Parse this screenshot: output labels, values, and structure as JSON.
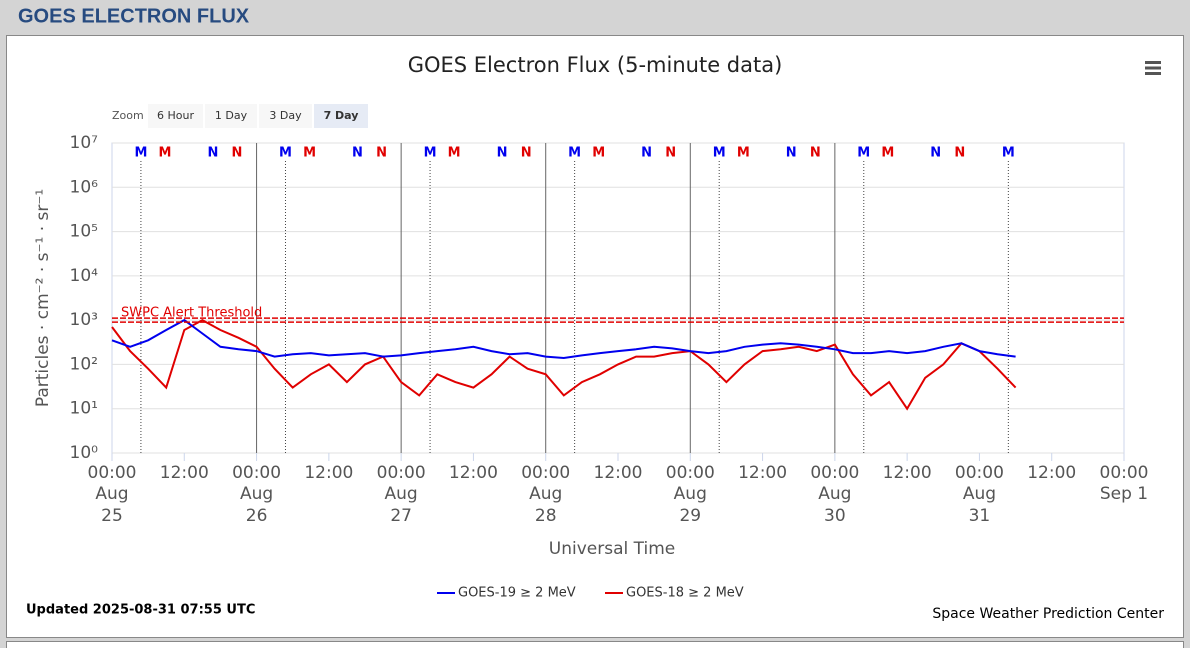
{
  "header": {
    "title": "GOES ELECTRON FLUX"
  },
  "zoom": {
    "label": "Zoom",
    "buttons": [
      "6 Hour",
      "1 Day",
      "3 Day",
      "7 Day"
    ],
    "selected": 3
  },
  "chart_data": {
    "type": "line",
    "title": "GOES Electron Flux (5-minute data)",
    "xlabel": "Universal Time",
    "ylabel": "Particles · cm⁻² · s⁻¹ · sr⁻¹",
    "log_y": true,
    "grid": true,
    "ylim": [
      1,
      10000000
    ],
    "yticks": [
      {
        "value": 1,
        "label": "10⁰"
      },
      {
        "value": 10,
        "label": "10¹"
      },
      {
        "value": 100,
        "label": "10²"
      },
      {
        "value": 1000,
        "label": "10³"
      },
      {
        "value": 10000,
        "label": "10⁴"
      },
      {
        "value": 100000,
        "label": "10⁵"
      },
      {
        "value": 1000000,
        "label": "10⁶"
      },
      {
        "value": 10000000,
        "label": "10⁷"
      }
    ],
    "xlim": [
      "08-25T00:00",
      "09-01T00:00"
    ],
    "xticks": [
      {
        "value": "08-25T00:00",
        "label": "00:00",
        "date": [
          "Aug",
          "25"
        ]
      },
      {
        "value": "08-25T12:00",
        "label": "12:00"
      },
      {
        "value": "08-26T00:00",
        "label": "00:00",
        "date": [
          "Aug",
          "26"
        ]
      },
      {
        "value": "08-26T12:00",
        "label": "12:00"
      },
      {
        "value": "08-27T00:00",
        "label": "00:00",
        "date": [
          "Aug",
          "27"
        ]
      },
      {
        "value": "08-27T12:00",
        "label": "12:00"
      },
      {
        "value": "08-28T00:00",
        "label": "00:00",
        "date": [
          "Aug",
          "28"
        ]
      },
      {
        "value": "08-28T12:00",
        "label": "12:00"
      },
      {
        "value": "08-29T00:00",
        "label": "00:00",
        "date": [
          "Aug",
          "29"
        ]
      },
      {
        "value": "08-29T12:00",
        "label": "12:00"
      },
      {
        "value": "08-30T00:00",
        "label": "00:00",
        "date": [
          "Aug",
          "30"
        ]
      },
      {
        "value": "08-30T12:00",
        "label": "12:00"
      },
      {
        "value": "08-31T00:00",
        "label": "00:00",
        "date": [
          "Aug",
          "31"
        ]
      },
      {
        "value": "08-31T12:00",
        "label": "12:00"
      },
      {
        "value": "09-01T00:00",
        "label": "00:00",
        "date": [
          "Sep 1"
        ]
      }
    ],
    "day_lines": [
      "08-26T00:00",
      "08-27T00:00",
      "08-28T00:00",
      "08-29T00:00",
      "08-30T00:00"
    ],
    "threshold": {
      "value": 1000,
      "label": "SWPC Alert Threshold",
      "color": "#e00000"
    },
    "markers": [
      {
        "label": "M",
        "color": "#0000ee",
        "dotted": true,
        "x": [
          "08-25T04:48",
          "08-26T04:48",
          "08-27T04:48",
          "08-28T04:48",
          "08-29T04:48",
          "08-30T04:48",
          "08-31T04:48"
        ]
      },
      {
        "label": "M",
        "color": "#e00000",
        "x": [
          "08-25T08:48",
          "08-26T08:48",
          "08-27T08:48",
          "08-28T08:48",
          "08-29T08:48",
          "08-30T08:48"
        ]
      },
      {
        "label": "N",
        "color": "#0000ee",
        "x": [
          "08-25T16:45",
          "08-26T16:45",
          "08-27T16:45",
          "08-28T16:45",
          "08-29T16:45",
          "08-30T16:45"
        ]
      },
      {
        "label": "N",
        "color": "#e00000",
        "x": [
          "08-25T20:45",
          "08-26T20:45",
          "08-27T20:45",
          "08-28T20:45",
          "08-29T20:45",
          "08-30T20:45"
        ]
      }
    ],
    "x": [
      "08-25T00:00",
      "08-25T03:00",
      "08-25T06:00",
      "08-25T09:00",
      "08-25T12:00",
      "08-25T15:00",
      "08-25T18:00",
      "08-25T21:00",
      "08-26T00:00",
      "08-26T03:00",
      "08-26T06:00",
      "08-26T09:00",
      "08-26T12:00",
      "08-26T15:00",
      "08-26T18:00",
      "08-26T21:00",
      "08-27T00:00",
      "08-27T03:00",
      "08-27T06:00",
      "08-27T09:00",
      "08-27T12:00",
      "08-27T15:00",
      "08-27T18:00",
      "08-27T21:00",
      "08-28T00:00",
      "08-28T03:00",
      "08-28T06:00",
      "08-28T09:00",
      "08-28T12:00",
      "08-28T15:00",
      "08-28T18:00",
      "08-28T21:00",
      "08-29T00:00",
      "08-29T03:00",
      "08-29T06:00",
      "08-29T09:00",
      "08-29T12:00",
      "08-29T15:00",
      "08-29T18:00",
      "08-29T21:00",
      "08-30T00:00",
      "08-30T03:00",
      "08-30T06:00",
      "08-30T09:00",
      "08-30T12:00",
      "08-30T15:00",
      "08-30T18:00",
      "08-30T21:00",
      "08-31T00:00",
      "08-31T03:00",
      "08-31T06:00"
    ],
    "series": [
      {
        "name": "GOES-19 ≥ 2 MeV",
        "color": "#0000ee",
        "values": [
          350,
          250,
          350,
          600,
          1000,
          500,
          250,
          220,
          200,
          150,
          170,
          180,
          160,
          170,
          180,
          150,
          160,
          180,
          200,
          220,
          250,
          200,
          170,
          180,
          150,
          140,
          160,
          180,
          200,
          220,
          250,
          230,
          200,
          180,
          200,
          250,
          280,
          300,
          280,
          250,
          220,
          180,
          180,
          200,
          180,
          200,
          250,
          300,
          200,
          170,
          150
        ]
      },
      {
        "name": "GOES-18 ≥ 2 MeV",
        "color": "#e00000",
        "values": [
          700,
          200,
          80,
          30,
          600,
          1000,
          600,
          400,
          250,
          80,
          30,
          60,
          100,
          40,
          100,
          150,
          40,
          20,
          60,
          40,
          30,
          60,
          150,
          80,
          60,
          20,
          40,
          60,
          100,
          150,
          150,
          180,
          200,
          100,
          40,
          100,
          200,
          220,
          250,
          200,
          280,
          60,
          20,
          40,
          10,
          50,
          100,
          300,
          200,
          80,
          30
        ]
      }
    ]
  },
  "footer": {
    "updated": "Updated 2025-08-31 07:55 UTC",
    "credit": "Space Weather Prediction Center"
  }
}
